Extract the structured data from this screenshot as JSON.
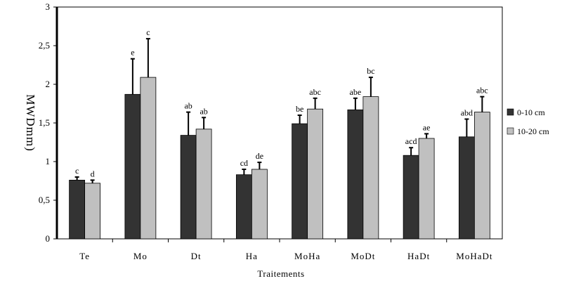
{
  "chart_data": {
    "type": "bar",
    "title": "",
    "xlabel": "Traitements",
    "ylabel": "MWDmm)",
    "ylim": [
      0,
      3
    ],
    "yticks": [
      "0",
      "0,5",
      "1",
      "1,5",
      "2",
      "2,5",
      "3"
    ],
    "categories": [
      "Te",
      "Mo",
      "Dt",
      "Ha",
      "MoHa",
      "MoDt",
      "HaDt",
      "MoHaDt"
    ],
    "legend_position": "right",
    "series": [
      {
        "name": "0-10 cm",
        "color": "#333333",
        "values": [
          0.76,
          1.87,
          1.34,
          0.83,
          1.49,
          1.67,
          1.08,
          1.32
        ],
        "errors": [
          0.04,
          0.46,
          0.3,
          0.07,
          0.11,
          0.15,
          0.1,
          0.23
        ],
        "letters": [
          "c",
          "e",
          "ab",
          "cd",
          "be",
          "abe",
          "acd",
          "abd"
        ]
      },
      {
        "name": "10-20 cm",
        "color": "#c0c0c0",
        "values": [
          0.72,
          2.09,
          1.42,
          0.9,
          1.68,
          1.84,
          1.3,
          1.64
        ],
        "errors": [
          0.04,
          0.5,
          0.15,
          0.09,
          0.14,
          0.25,
          0.06,
          0.2
        ],
        "letters": [
          "d",
          "c",
          "ab",
          "de",
          "abc",
          "bc",
          "ae",
          "abc"
        ]
      }
    ]
  }
}
